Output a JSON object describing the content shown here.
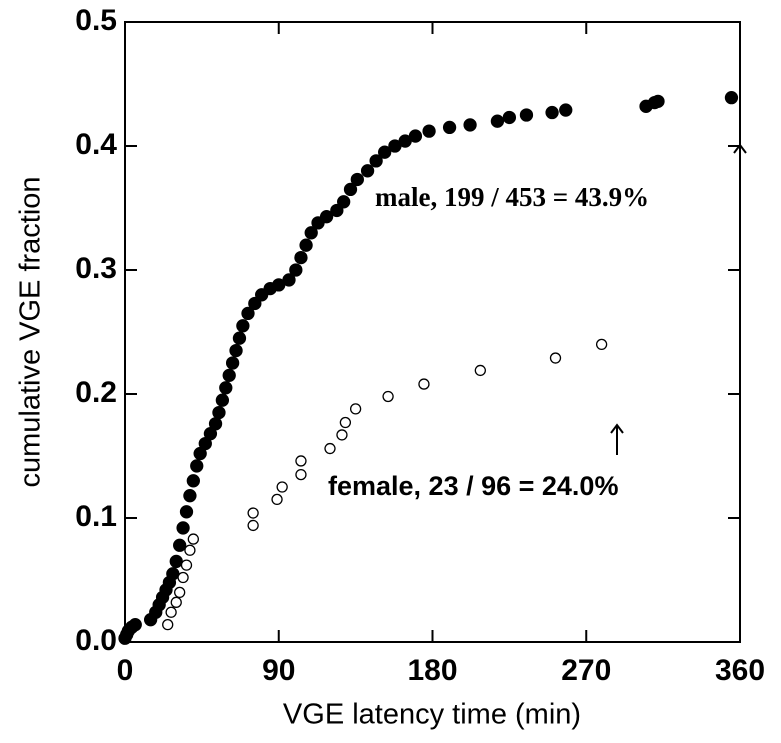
{
  "chart_data": {
    "type": "scatter",
    "xlabel": "VGE latency time (min)",
    "ylabel": "cumulative VGE fraction",
    "xlim": [
      0,
      360
    ],
    "ylim": [
      0,
      0.5
    ],
    "xticks": [
      0,
      90,
      180,
      270,
      360
    ],
    "yticks": [
      {
        "value": 0,
        "label": "0.0"
      },
      0.1,
      0.2,
      0.3,
      0.4,
      0.5
    ],
    "series": [
      {
        "color": "#000000",
        "marker": "filled",
        "x": [
          0,
          1,
          2,
          4,
          6,
          15,
          18,
          20,
          22,
          24,
          26,
          28,
          30,
          32,
          34,
          36,
          38,
          40,
          42,
          44,
          47,
          50,
          53,
          55,
          57,
          59,
          61,
          63,
          65,
          67,
          69,
          72,
          76,
          80,
          85,
          90,
          96,
          100,
          103,
          106,
          109,
          113,
          118,
          124,
          128,
          132,
          136,
          142,
          147,
          152,
          158,
          164,
          170,
          178,
          190,
          202,
          218,
          225,
          235,
          250,
          258,
          305,
          310,
          312,
          355
        ],
        "values": [
          0.003,
          0.006,
          0.009,
          0.012,
          0.014,
          0.018,
          0.024,
          0.03,
          0.036,
          0.042,
          0.048,
          0.055,
          0.065,
          0.078,
          0.092,
          0.105,
          0.118,
          0.13,
          0.142,
          0.152,
          0.16,
          0.168,
          0.176,
          0.185,
          0.195,
          0.205,
          0.215,
          0.225,
          0.235,
          0.245,
          0.255,
          0.265,
          0.273,
          0.28,
          0.285,
          0.288,
          0.292,
          0.3,
          0.31,
          0.32,
          0.33,
          0.338,
          0.343,
          0.348,
          0.355,
          0.365,
          0.373,
          0.38,
          0.388,
          0.395,
          0.4,
          0.404,
          0.408,
          0.412,
          0.415,
          0.417,
          0.42,
          0.423,
          0.425,
          0.427,
          0.429,
          0.432,
          0.435,
          0.436,
          0.439
        ]
      },
      {
        "color": "#000000",
        "marker": "open",
        "x": [
          25,
          27,
          30,
          32,
          34,
          36,
          38,
          40,
          75,
          75,
          89,
          92,
          103,
          103,
          120,
          127,
          129,
          135,
          154,
          175,
          208,
          252,
          279
        ],
        "values": [
          0.014,
          0.024,
          0.032,
          0.04,
          0.052,
          0.062,
          0.074,
          0.083,
          0.094,
          0.104,
          0.115,
          0.125,
          0.135,
          0.146,
          0.156,
          0.167,
          0.177,
          0.188,
          0.198,
          0.208,
          0.219,
          0.229,
          0.24
        ]
      }
    ],
    "annotations": [
      "male, 199 / 453 = 43.9%",
      "female, 23 / 96 = 24.0%"
    ]
  }
}
